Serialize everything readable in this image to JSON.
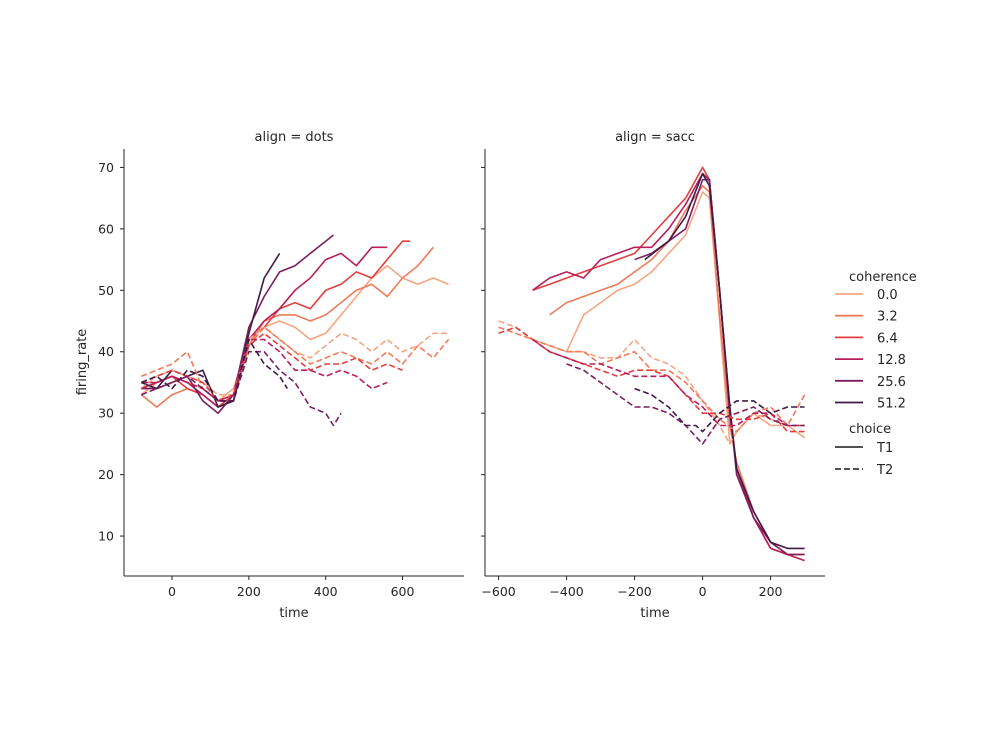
{
  "chart_data": {
    "type": "line",
    "ylabel": "firing_rate",
    "ylim": [
      3.5,
      73
    ],
    "yticks": [
      10,
      20,
      30,
      40,
      50,
      60,
      70
    ],
    "grid": false,
    "legend": {
      "placement": "right",
      "hue_title": "coherence",
      "style_title": "choice",
      "hue_levels": [
        "0.0",
        "3.2",
        "6.4",
        "12.8",
        "25.6",
        "51.2"
      ],
      "style_levels": [
        "T1",
        "T2"
      ]
    },
    "colors": {
      "0.0": "#f5a582",
      "3.2": "#ef7b5a",
      "6.4": "#e1403f",
      "12.8": "#b91f5b",
      "25.6": "#7b1f5e",
      "51.2": "#3e1b47"
    },
    "panels": [
      {
        "title": "align = dots",
        "xlabel": "time",
        "xlim": [
          -125,
          760
        ],
        "xticks": [
          0,
          200,
          400,
          600
        ],
        "series": [
          {
            "coherence": "0.0",
            "choice": "T1",
            "x": [
              -80,
              -40,
              0,
              40,
              80,
              120,
              160,
              200,
              240,
              280,
              320,
              360,
              400,
              440,
              480,
              520,
              560,
              600,
              640,
              680,
              720
            ],
            "y": [
              33,
              35,
              36,
              35,
              34,
              32,
              34,
              42,
              44,
              45,
              44,
              42,
              43,
              46,
              49,
              52,
              54,
              52,
              51,
              52,
              51
            ]
          },
          {
            "coherence": "3.2",
            "choice": "T1",
            "x": [
              -80,
              -40,
              0,
              40,
              80,
              120,
              160,
              200,
              240,
              280,
              320,
              360,
              400,
              440,
              480,
              520,
              560,
              600,
              640,
              680
            ],
            "y": [
              33,
              31,
              33,
              34,
              33,
              31,
              32,
              41,
              45,
              46,
              46,
              45,
              46,
              48,
              50,
              51,
              49,
              52,
              54,
              57
            ]
          },
          {
            "coherence": "6.4",
            "choice": "T1",
            "x": [
              -80,
              -40,
              0,
              40,
              80,
              120,
              160,
              200,
              240,
              280,
              320,
              360,
              400,
              440,
              480,
              520,
              560,
              600,
              620
            ],
            "y": [
              34,
              35,
              36,
              34,
              33,
              31,
              33,
              42,
              44,
              47,
              48,
              47,
              50,
              51,
              53,
              52,
              55,
              58,
              58
            ]
          },
          {
            "coherence": "12.8",
            "choice": "T1",
            "x": [
              -80,
              -40,
              0,
              40,
              80,
              120,
              160,
              200,
              240,
              280,
              320,
              360,
              400,
              440,
              480,
              520,
              560
            ],
            "y": [
              35,
              35,
              36,
              35,
              33,
              31,
              32,
              42,
              45,
              47,
              50,
              52,
              55,
              56,
              54,
              57,
              57
            ]
          },
          {
            "coherence": "25.6",
            "choice": "T1",
            "x": [
              -80,
              -40,
              0,
              40,
              80,
              120,
              160,
              200,
              240,
              280,
              320,
              360,
              400,
              420
            ],
            "y": [
              34,
              34,
              35,
              36,
              32,
              30,
              33,
              44,
              49,
              53,
              54,
              56,
              58,
              59
            ]
          },
          {
            "coherence": "51.2",
            "choice": "T1",
            "x": [
              -80,
              -40,
              0,
              40,
              80,
              120,
              160,
              200,
              240,
              270,
              280
            ],
            "y": [
              35,
              34,
              37,
              36,
              37,
              31,
              32,
              43,
              52,
              55,
              56
            ]
          },
          {
            "coherence": "0.0",
            "choice": "T2",
            "x": [
              -80,
              -40,
              0,
              40,
              80,
              120,
              160,
              200,
              240,
              280,
              320,
              360,
              400,
              440,
              480,
              520,
              560,
              600,
              640,
              680,
              720
            ],
            "y": [
              34,
              36,
              37,
              36,
              35,
              33,
              33,
              42,
              44,
              42,
              40,
              39,
              41,
              43,
              42,
              40,
              42,
              40,
              41,
              43,
              43
            ]
          },
          {
            "coherence": "3.2",
            "choice": "T2",
            "x": [
              -80,
              -40,
              0,
              40,
              80,
              120,
              160,
              200,
              240,
              280,
              320,
              360,
              400,
              440,
              480,
              520,
              560,
              600,
              640,
              680,
              720
            ],
            "y": [
              36,
              37,
              38,
              40,
              34,
              32,
              33,
              41,
              44,
              42,
              40,
              38,
              39,
              40,
              39,
              38,
              40,
              38,
              41,
              39,
              42
            ]
          },
          {
            "coherence": "6.4",
            "choice": "T2",
            "x": [
              -80,
              -40,
              0,
              40,
              80,
              120,
              160,
              200,
              240,
              280,
              320,
              360,
              400,
              440,
              480,
              520,
              560,
              600
            ],
            "y": [
              35,
              36,
              37,
              36,
              35,
              32,
              33,
              41,
              43,
              41,
              39,
              37,
              38,
              38,
              39,
              37,
              38,
              37
            ]
          },
          {
            "coherence": "12.8",
            "choice": "T2",
            "x": [
              -80,
              -40,
              0,
              40,
              80,
              120,
              160,
              200,
              240,
              280,
              320,
              360,
              400,
              440,
              480,
              520,
              560
            ],
            "y": [
              34,
              35,
              36,
              35,
              34,
              32,
              33,
              42,
              42,
              40,
              37,
              37,
              36,
              37,
              36,
              34,
              35
            ]
          },
          {
            "coherence": "25.6",
            "choice": "T2",
            "x": [
              -80,
              -40,
              0,
              40,
              80,
              120,
              160,
              200,
              240,
              280,
              320,
              360,
              400,
              420,
              440
            ],
            "y": [
              33,
              34,
              35,
              36,
              34,
              32,
              32,
              40,
              40,
              37,
              35,
              31,
              30,
              28,
              30
            ]
          },
          {
            "coherence": "51.2",
            "choice": "T2",
            "x": [
              -80,
              -40,
              0,
              40,
              80,
              120,
              160,
              200,
              240,
              280,
              300
            ],
            "y": [
              35,
              36,
              34,
              37,
              36,
              32,
              32,
              42,
              38,
              36,
              34
            ]
          }
        ]
      },
      {
        "title": "align = sacc",
        "xlabel": "time",
        "xlim": [
          -640,
          360
        ],
        "xticks": [
          -600,
          -400,
          -200,
          0,
          200
        ],
        "series": [
          {
            "coherence": "0.0",
            "choice": "T1",
            "x": [
              -400,
              -350,
              -300,
              -250,
              -200,
              -150,
              -100,
              -50,
              0,
              20,
              50,
              80,
              100,
              150,
              200,
              250,
              300
            ],
            "y": [
              40,
              46,
              48,
              50,
              51,
              53,
              56,
              59,
              66,
              65,
              45,
              25,
              27,
              30,
              28,
              28,
              26
            ]
          },
          {
            "coherence": "3.2",
            "choice": "T1",
            "x": [
              -450,
              -400,
              -350,
              -300,
              -250,
              -200,
              -150,
              -100,
              -50,
              0,
              20,
              50,
              80,
              100,
              150,
              200,
              250,
              300
            ],
            "y": [
              46,
              48,
              49,
              50,
              51,
              53,
              55,
              58,
              63,
              67,
              66,
              46,
              28,
              22,
              14,
              9,
              7,
              7
            ]
          },
          {
            "coherence": "6.4",
            "choice": "T1",
            "x": [
              -500,
              -450,
              -400,
              -350,
              -300,
              -250,
              -200,
              -150,
              -100,
              -50,
              0,
              20,
              50,
              80,
              100,
              150,
              200,
              250,
              300
            ],
            "y": [
              50,
              51,
              52,
              53,
              54,
              55,
              56,
              59,
              62,
              65,
              70,
              68,
              50,
              30,
              21,
              13,
              8,
              7,
              7
            ]
          },
          {
            "coherence": "12.8",
            "choice": "T1",
            "x": [
              -500,
              -450,
              -400,
              -350,
              -300,
              -250,
              -200,
              -150,
              -100,
              -50,
              0,
              20,
              50,
              80,
              100,
              150,
              200,
              250,
              300
            ],
            "y": [
              50,
              52,
              53,
              52,
              55,
              56,
              57,
              57,
              60,
              64,
              69,
              68,
              50,
              30,
              21,
              13,
              8,
              7,
              6
            ]
          },
          {
            "coherence": "25.6",
            "choice": "T1",
            "x": [
              -200,
              -150,
              -100,
              -50,
              0,
              20,
              50,
              80,
              100,
              150,
              200,
              250,
              300
            ],
            "y": [
              55,
              56,
              58,
              60,
              68,
              68,
              50,
              31,
              20,
              13,
              9,
              7,
              7
            ]
          },
          {
            "coherence": "51.2",
            "choice": "T1",
            "x": [
              -170,
              -100,
              -50,
              0,
              20,
              50,
              80,
              100,
              150,
              200,
              250,
              300
            ],
            "y": [
              55,
              58,
              62,
              69,
              67,
              50,
              31,
              21,
              14,
              9,
              8,
              8
            ]
          },
          {
            "coherence": "0.0",
            "choice": "T2",
            "x": [
              -600,
              -550,
              -500,
              -450,
              -400,
              -350,
              -300,
              -250,
              -200,
              -150,
              -100,
              -50,
              0,
              50,
              80,
              100,
              150,
              200,
              250,
              300
            ],
            "y": [
              45,
              44,
              42,
              41,
              40,
              40,
              39,
              39,
              42,
              39,
              38,
              36,
              32,
              28,
              25,
              27,
              30,
              29,
              28,
              28
            ]
          },
          {
            "coherence": "3.2",
            "choice": "T2",
            "x": [
              -600,
              -550,
              -500,
              -450,
              -400,
              -350,
              -300,
              -250,
              -200,
              -150,
              -100,
              -50,
              0,
              50,
              100,
              150,
              200,
              250,
              300
            ],
            "y": [
              44,
              43,
              42,
              41,
              40,
              40,
              38,
              39,
              40,
              37,
              37,
              35,
              32,
              29,
              27,
              30,
              31,
              28,
              33
            ]
          },
          {
            "coherence": "6.4",
            "choice": "T2",
            "x": [
              -600,
              -550,
              -500,
              -450,
              -400,
              -350,
              -300,
              -250,
              -200,
              -150,
              -100,
              -50,
              0,
              50,
              100,
              150,
              200,
              250,
              300
            ],
            "y": [
              43,
              44,
              42,
              40,
              39,
              38,
              37,
              36,
              37,
              37,
              36,
              33,
              30,
              30,
              29,
              29,
              30,
              27,
              27
            ]
          },
          {
            "coherence": "12.8",
            "choice": "T2",
            "x": [
              -500,
              -450,
              -400,
              -350,
              -300,
              -250,
              -200,
              -150,
              -100,
              -50,
              0,
              50,
              100,
              150,
              200,
              250,
              300
            ],
            "y": [
              42,
              40,
              39,
              38,
              38,
              37,
              36,
              36,
              36,
              33,
              31,
              28,
              28,
              30,
              30,
              28,
              28
            ]
          },
          {
            "coherence": "25.6",
            "choice": "T2",
            "x": [
              -400,
              -350,
              -300,
              -250,
              -200,
              -150,
              -100,
              -50,
              0,
              50,
              100,
              150,
              200,
              250,
              300
            ],
            "y": [
              38,
              37,
              35,
              33,
              31,
              31,
              30,
              28,
              25,
              29,
              30,
              31,
              29,
              28,
              28
            ]
          },
          {
            "coherence": "51.2",
            "choice": "T2",
            "x": [
              -200,
              -150,
              -100,
              -50,
              -20,
              0,
              50,
              100,
              150,
              200,
              250,
              300
            ],
            "y": [
              34,
              33,
              31,
              28,
              28,
              27,
              30,
              32,
              32,
              30,
              31,
              31
            ]
          }
        ]
      }
    ]
  }
}
